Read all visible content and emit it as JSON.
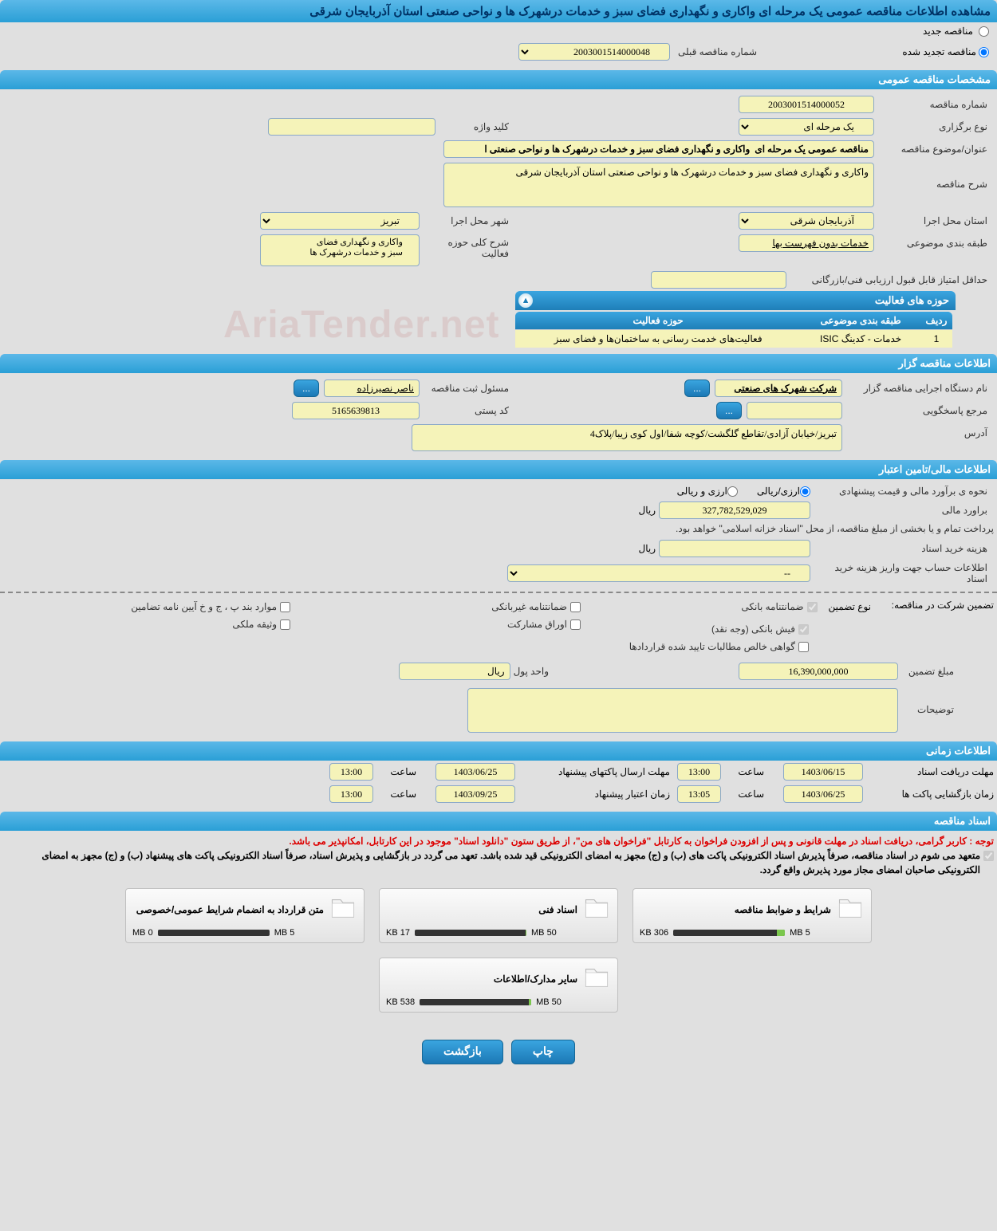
{
  "page_title": "مشاهده اطلاعات مناقصه عمومی یک مرحله ای واکاری و نگهداری فضای سبز و خدمات درشهرک ها و نواحی صنعتی استان آذربایجان شرقی",
  "tender_type": {
    "option_new": "مناقصه جدید",
    "option_renewed": "مناقصه تجدید شده",
    "prev_number_label": "شماره مناقصه قبلی",
    "prev_number": "2003001514000048"
  },
  "section_general": "مشخصات مناقصه عمومی",
  "general": {
    "number_label": "شماره مناقصه",
    "number": "2003001514000052",
    "holding_type_label": "نوع برگزاری",
    "holding_type": "یک مرحله ای",
    "keyword_label": "کلید واژه",
    "keyword": "",
    "title_label": "عنوان/موضوع مناقصه",
    "title": "مناقصه عمومی یک مرحله ای  واکاری و نگهداری فضای سبز و خدمات درشهرک ها و نواحی صنعتی ا",
    "desc_label": "شرح مناقصه",
    "desc": "واکاری و نگهداری فضای سبز و خدمات درشهرک ها و نواحی صنعتی استان آذربایجان شرقی",
    "province_label": "استان محل اجرا",
    "province": "آذربایجان شرقی",
    "city_label": "شهر محل اجرا",
    "city": "تبریز",
    "category_label": "طبقه بندی موضوعی",
    "category": "خدمات بدون فهرست بها",
    "activity_scope_label": "شرح کلی حوزه فعالیت",
    "activity_scope_line1": "واکاری و نگهداری فضای",
    "activity_scope_line2": "سبز و خدمات درشهرک ها",
    "min_score_label": "حداقل امتیاز قابل قبول ارزیابی فنی/بازرگانی",
    "min_score": ""
  },
  "activity_area": {
    "header": "حوزه های فعالیت",
    "col_row": "ردیف",
    "col_category": "طبقه بندی موضوعی",
    "col_scope": "حوزه فعالیت",
    "rows": [
      {
        "idx": "1",
        "cat": "خدمات - کدینگ ISIC",
        "scope": "فعالیت‌های خدمت رسانی به ساختمان‌ها و فضای سبز"
      }
    ]
  },
  "section_owner": "اطلاعات مناقصه گزار",
  "owner": {
    "org_label": "نام دستگاه اجرایی مناقصه گزار",
    "org": "شرکت شهرک های صنعتی",
    "registrar_label": "مسئول ثبت مناقصه",
    "registrar": "ناصر نصیرزاده",
    "contact_label": "مرجع پاسخگویی",
    "contact": "",
    "postal_label": "کد پستی",
    "postal": "5165639813",
    "address_label": "آدرس",
    "address": "تبریز/خیابان آزادی/تقاطع گلگشت/کوچه شفا/اول کوی زیبا/پلاک4"
  },
  "section_finance": "اطلاعات مالی/تامین اعتبار",
  "finance": {
    "estimate_method_label": "نحوه ی برآورد مالی و قیمت پیشنهادی",
    "opt_rial": "ارزی/ریالی",
    "opt_fx": "ارزی و ریالی",
    "estimate_label": "براورد مالی",
    "estimate_value": "327,782,529,029",
    "currency": "ریال",
    "treasury_note": "پرداخت تمام و یا بخشی از مبلغ مناقصه، از محل \"اسناد خزانه اسلامی\" خواهد بود.",
    "doc_fee_label": "هزینه خرید اسناد",
    "doc_fee_value": "",
    "doc_fee_unit": "ریال",
    "account_info_label": "اطلاعات حساب جهت واریز هزینه خرید اسناد",
    "account_info": "--"
  },
  "guarantee": {
    "header_label": "تضمین شرکت در مناقصه:",
    "type_label": "نوع تضمین",
    "chk_bank_guarantee": "ضمانتنامه بانکی",
    "chk_nonbank_guarantee": "ضمانتنامه غیربانکی",
    "chk_bonds": "موارد بند پ ، ج و خ آیین نامه تضامین",
    "chk_bank_receipt": "فیش بانکی (وجه نقد)",
    "chk_shares": "اوراق مشارکت",
    "chk_property": "وثیقه ملکی",
    "chk_receivables": "گواهی خالص مطالبات تایید شده قراردادها",
    "amount_label": "مبلغ تضمین",
    "amount": "16,390,000,000",
    "currency_unit_label": "واحد پول",
    "currency_unit": "ریال",
    "notes_label": "توضیحات",
    "notes": ""
  },
  "section_timing": "اطلاعات زمانی",
  "timing": {
    "doc_receive_label": "مهلت دریافت اسناد",
    "doc_receive_date": "1403/06/15",
    "doc_receive_time": "13:00",
    "pkg_send_label": "مهلت ارسال پاکتهای پیشنهاد",
    "pkg_send_date": "1403/06/25",
    "pkg_send_time": "13:00",
    "open_label": "زمان بازگشایی پاکت ها",
    "open_date": "1403/06/25",
    "open_time": "13:05",
    "validity_label": "زمان اعتبار پیشنهاد",
    "validity_date": "1403/09/25",
    "validity_time": "13:00",
    "hour_label": "ساعت"
  },
  "section_docs": "اسناد مناقصه",
  "docs": {
    "notice_red": "توجه : کاربر گرامی، دریافت اسناد در مهلت قانونی و پس از افزودن فراخوان به کارتابل \"فراخوان های من\"، از طریق ستون \"دانلود اسناد\" موجود در این کارتابل، امکانپذیر می باشد.",
    "notice_black": "متعهد می شوم در اسناد مناقصه، صرفاً پذیرش اسناد الکترونیکی پاکت های (ب) و (ج) مجهز به امضای الکترونیکی قید شده باشد. تعهد می گردد در بازگشایی و پذیرش اسناد، صرفاً اسناد الکترونیکی پاکت های پیشنهاد (ب) و (ج) مجهز به امضای الکترونیکی صاحبان امضای مجاز مورد پذیرش واقع گردد.",
    "files": [
      {
        "name": "شرایط و ضوابط مناقصه",
        "size": "306 KB",
        "capacity": "5 MB",
        "fill_pct": 7
      },
      {
        "name": "اسناد فنی",
        "size": "17 KB",
        "capacity": "50 MB",
        "fill_pct": 1
      },
      {
        "name": "متن قرارداد به انضمام شرایط عمومی/خصوصی",
        "size": "0 MB",
        "capacity": "5 MB",
        "fill_pct": 0
      },
      {
        "name": "سایر مدارک/اطلاعات",
        "size": "538 KB",
        "capacity": "50 MB",
        "fill_pct": 2
      }
    ]
  },
  "footer": {
    "print": "چاپ",
    "back": "بازگشت"
  },
  "buttons": {
    "ellipsis": "..."
  },
  "watermark": "AriaTender.net",
  "colors": {
    "header_bg": "#2a9fd6",
    "input_bg": "#f5f3b9",
    "page_bg": "#e0e0e0"
  }
}
